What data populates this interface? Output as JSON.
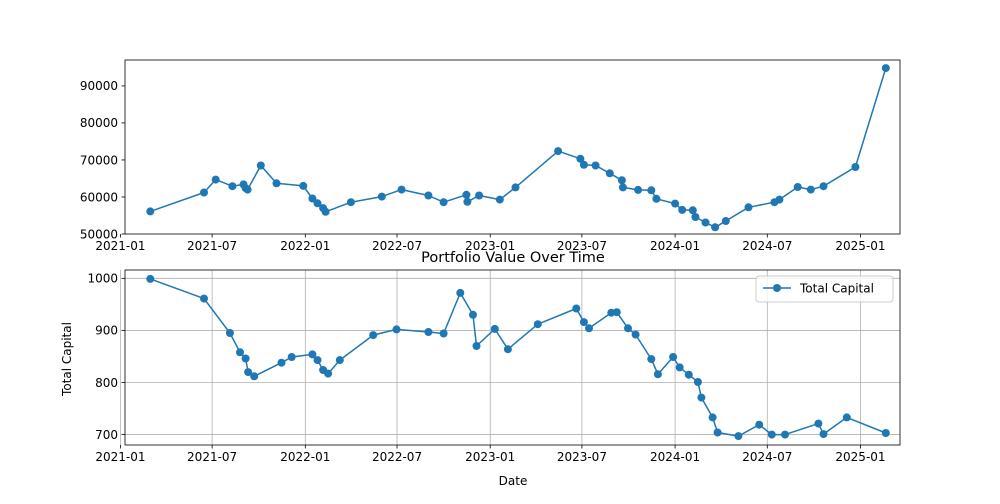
{
  "chart_data": [
    {
      "type": "line",
      "title": "",
      "xlabel": "",
      "ylabel": "",
      "xlim": [
        "2021-01-10",
        "2025-03-20"
      ],
      "ylim": [
        50000,
        97000
      ],
      "grid": false,
      "legend": null,
      "x_ticks": [
        "2021-01",
        "2021-07",
        "2022-01",
        "2022-07",
        "2023-01",
        "2023-07",
        "2024-01",
        "2024-07",
        "2025-01"
      ],
      "y_ticks": [
        50000,
        60000,
        70000,
        80000,
        90000
      ],
      "series": [
        {
          "name": "",
          "color": "#1f77b4",
          "marker": "circle",
          "points": [
            [
              "2021-03-01",
              56100
            ],
            [
              "2021-06-15",
              61200
            ],
            [
              "2021-07-08",
              64700
            ],
            [
              "2021-08-10",
              62900
            ],
            [
              "2021-09-01",
              63400
            ],
            [
              "2021-09-05",
              62400
            ],
            [
              "2021-09-09",
              62000
            ],
            [
              "2021-10-05",
              68500
            ],
            [
              "2021-11-05",
              63700
            ],
            [
              "2021-12-28",
              63000
            ],
            [
              "2022-01-15",
              59600
            ],
            [
              "2022-01-25",
              58300
            ],
            [
              "2022-02-05",
              57000
            ],
            [
              "2022-02-10",
              56000
            ],
            [
              "2022-04-01",
              58600
            ],
            [
              "2022-06-01",
              60100
            ],
            [
              "2022-07-10",
              62000
            ],
            [
              "2022-09-01",
              60400
            ],
            [
              "2022-10-01",
              58600
            ],
            [
              "2022-11-15",
              60600
            ],
            [
              "2022-11-17",
              58700
            ],
            [
              "2022-12-10",
              60400
            ],
            [
              "2023-01-20",
              59300
            ],
            [
              "2023-02-20",
              62600
            ],
            [
              "2023-05-15",
              72400
            ],
            [
              "2023-06-28",
              70300
            ],
            [
              "2023-07-05",
              68700
            ],
            [
              "2023-07-28",
              68500
            ],
            [
              "2023-08-25",
              66400
            ],
            [
              "2023-09-18",
              64500
            ],
            [
              "2023-09-20",
              62600
            ],
            [
              "2023-10-20",
              61900
            ],
            [
              "2023-11-15",
              61800
            ],
            [
              "2023-11-25",
              59500
            ],
            [
              "2024-01-01",
              58200
            ],
            [
              "2024-01-15",
              56500
            ],
            [
              "2024-02-05",
              56400
            ],
            [
              "2024-02-10",
              54600
            ],
            [
              "2024-03-01",
              53100
            ],
            [
              "2024-03-20",
              51800
            ],
            [
              "2024-04-10",
              53500
            ],
            [
              "2024-05-25",
              57200
            ],
            [
              "2024-07-15",
              58600
            ],
            [
              "2024-07-25",
              59300
            ],
            [
              "2024-08-30",
              62700
            ],
            [
              "2024-09-25",
              62000
            ],
            [
              "2024-10-20",
              62900
            ],
            [
              "2024-12-22",
              68100
            ],
            [
              "2025-02-20",
              94800
            ]
          ]
        }
      ]
    },
    {
      "type": "line",
      "title": "Portfolio Value Over Time",
      "xlabel": "Date",
      "ylabel": "Total Capital",
      "xlim": [
        "2021-01-10",
        "2025-03-20"
      ],
      "ylim": [
        680,
        1016
      ],
      "grid": true,
      "legend": "top-right",
      "x_ticks": [
        "2021-01",
        "2021-07",
        "2022-01",
        "2022-07",
        "2023-01",
        "2023-07",
        "2024-01",
        "2024-07",
        "2025-01"
      ],
      "y_ticks": [
        700,
        800,
        900,
        1000
      ],
      "series": [
        {
          "name": "Total Capital",
          "color": "#1f77b4",
          "marker": "circle",
          "points": [
            [
              "2021-03-01",
              999
            ],
            [
              "2021-06-15",
              961
            ],
            [
              "2021-08-05",
              895
            ],
            [
              "2021-08-25",
              858
            ],
            [
              "2021-09-05",
              846
            ],
            [
              "2021-09-10",
              820
            ],
            [
              "2021-09-22",
              812
            ],
            [
              "2021-11-15",
              838
            ],
            [
              "2021-12-05",
              849
            ],
            [
              "2022-01-15",
              854
            ],
            [
              "2022-01-25",
              843
            ],
            [
              "2022-02-05",
              824
            ],
            [
              "2022-02-15",
              817
            ],
            [
              "2022-03-10",
              843
            ],
            [
              "2022-05-15",
              891
            ],
            [
              "2022-06-30",
              902
            ],
            [
              "2022-09-01",
              897
            ],
            [
              "2022-10-01",
              894
            ],
            [
              "2022-11-03",
              972
            ],
            [
              "2022-11-28",
              930
            ],
            [
              "2022-12-05",
              870
            ],
            [
              "2023-01-10",
              903
            ],
            [
              "2023-02-05",
              864
            ],
            [
              "2023-04-05",
              912
            ],
            [
              "2023-06-20",
              942
            ],
            [
              "2023-07-05",
              916
            ],
            [
              "2023-07-15",
              904
            ],
            [
              "2023-08-28",
              934
            ],
            [
              "2023-09-08",
              935
            ],
            [
              "2023-09-30",
              904
            ],
            [
              "2023-10-15",
              892
            ],
            [
              "2023-11-15",
              845
            ],
            [
              "2023-11-28",
              816
            ],
            [
              "2023-12-28",
              849
            ],
            [
              "2024-01-10",
              829
            ],
            [
              "2024-01-28",
              815
            ],
            [
              "2024-02-15",
              801
            ],
            [
              "2024-02-22",
              771
            ],
            [
              "2024-03-15",
              733
            ],
            [
              "2024-03-25",
              704
            ],
            [
              "2024-05-05",
              697
            ],
            [
              "2024-06-15",
              719
            ],
            [
              "2024-07-10",
              700
            ],
            [
              "2024-08-05",
              700
            ],
            [
              "2024-10-10",
              721
            ],
            [
              "2024-10-20",
              701
            ],
            [
              "2024-12-05",
              733
            ],
            [
              "2025-02-20",
              703
            ]
          ]
        }
      ]
    }
  ]
}
